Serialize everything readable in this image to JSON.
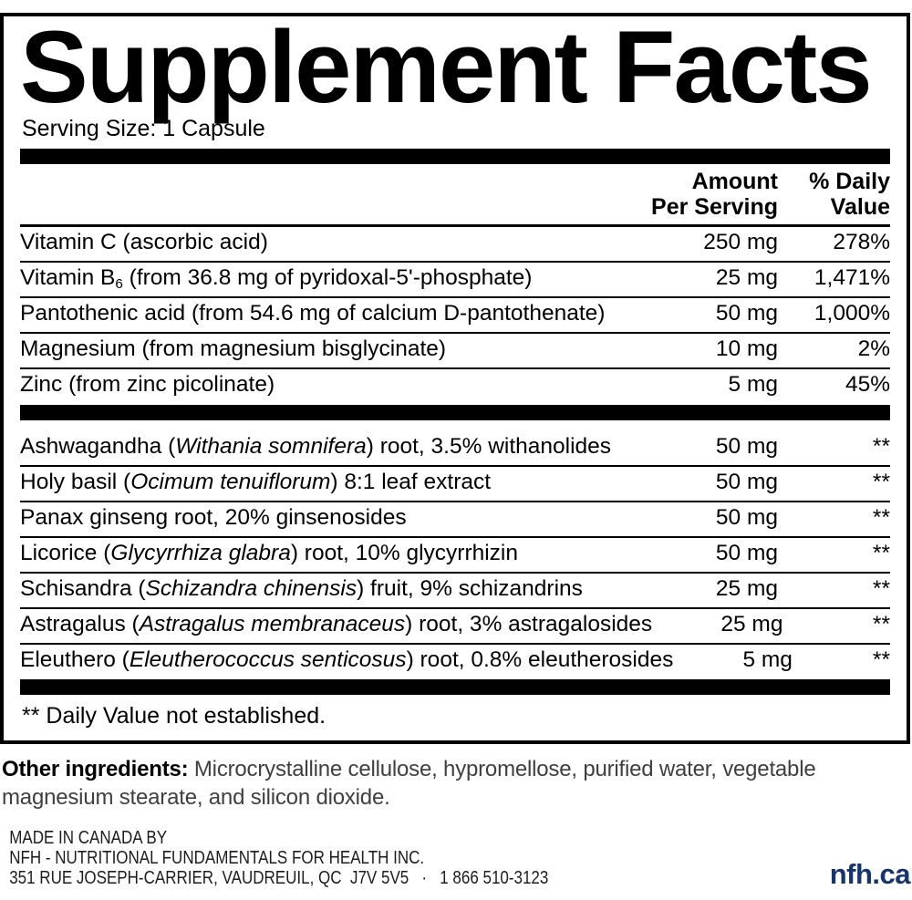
{
  "panel": {
    "title": "Supplement Facts",
    "serving_size": "Serving Size: 1 Capsule",
    "header": {
      "amount_line1": "Amount",
      "amount_line2": "Per Serving",
      "dv_line1": "% Daily",
      "dv_line2": "Value"
    },
    "vitamins": [
      {
        "pre": "Vitamin C (ascorbic acid)",
        "amount": "250 mg",
        "dv": "278%"
      },
      {
        "pre": "Vitamin B",
        "sub": "6",
        "post": " (from 36.8 mg of pyridoxal-5'-phosphate)",
        "amount": "25 mg",
        "dv": "1,471%"
      },
      {
        "pre": "Pantothenic acid (from 54.6 mg of calcium D-pantothenate)",
        "amount": "50 mg",
        "dv": "1,000%"
      },
      {
        "pre": "Magnesium (from magnesium bisglycinate)",
        "amount": "10 mg",
        "dv": "2%"
      },
      {
        "pre": "Zinc (from zinc picolinate)",
        "amount": "5 mg",
        "dv": "45%"
      }
    ],
    "botanicals": [
      {
        "pre": "Ashwagandha (",
        "em": "Withania somnifera",
        "post": ") root, 3.5% withanolides",
        "amount": "50 mg",
        "dv": "**"
      },
      {
        "pre": "Holy basil (",
        "em": "Ocimum tenuiflorum",
        "post": ") 8:1 leaf extract",
        "amount": "50 mg",
        "dv": "**"
      },
      {
        "pre": "Panax ginseng root, 20% ginsenosides",
        "amount": "50 mg",
        "dv": "**"
      },
      {
        "pre": "Licorice (",
        "em": "Glycyrrhiza glabra",
        "post": ") root, 10% glycyrrhizin",
        "amount": "50 mg",
        "dv": "**"
      },
      {
        "pre": "Schisandra (",
        "em": "Schizandra chinensis",
        "post": ") fruit, 9% schizandrins",
        "amount": "25 mg",
        "dv": "**"
      },
      {
        "pre": "Astragalus (",
        "em": "Astragalus membranaceus",
        "post": ") root, 3% astragalosides",
        "amount": "25 mg",
        "dv": "**"
      },
      {
        "pre": "Eleuthero (",
        "em": "Eleutherococcus senticosus",
        "post": ") root, 0.8% eleutherosides",
        "amount": "5 mg",
        "dv": "**"
      }
    ],
    "footnote": "** Daily Value not established."
  },
  "other_ingredients": {
    "label": "Other ingredients:",
    "line1": "Microcrystalline cellulose, hypromellose, purified water, vegetable",
    "line2": "magnesium stearate, and silicon dioxide."
  },
  "footer": {
    "made_in": "MADE IN CANADA BY",
    "company": "NFH - NUTRITIONAL FUNDAMENTALS FOR HEALTH INC.",
    "address": "351 RUE JOSEPH-CARRIER, VAUDREUIL, QC  J7V 5V5   ·   1 866 510-3123",
    "website": "nfh.ca"
  },
  "colors": {
    "panel_text": "#000000",
    "body_text": "#3f3f3f",
    "footer_text": "#1d1d1f",
    "brand_navy": "#17356d"
  }
}
